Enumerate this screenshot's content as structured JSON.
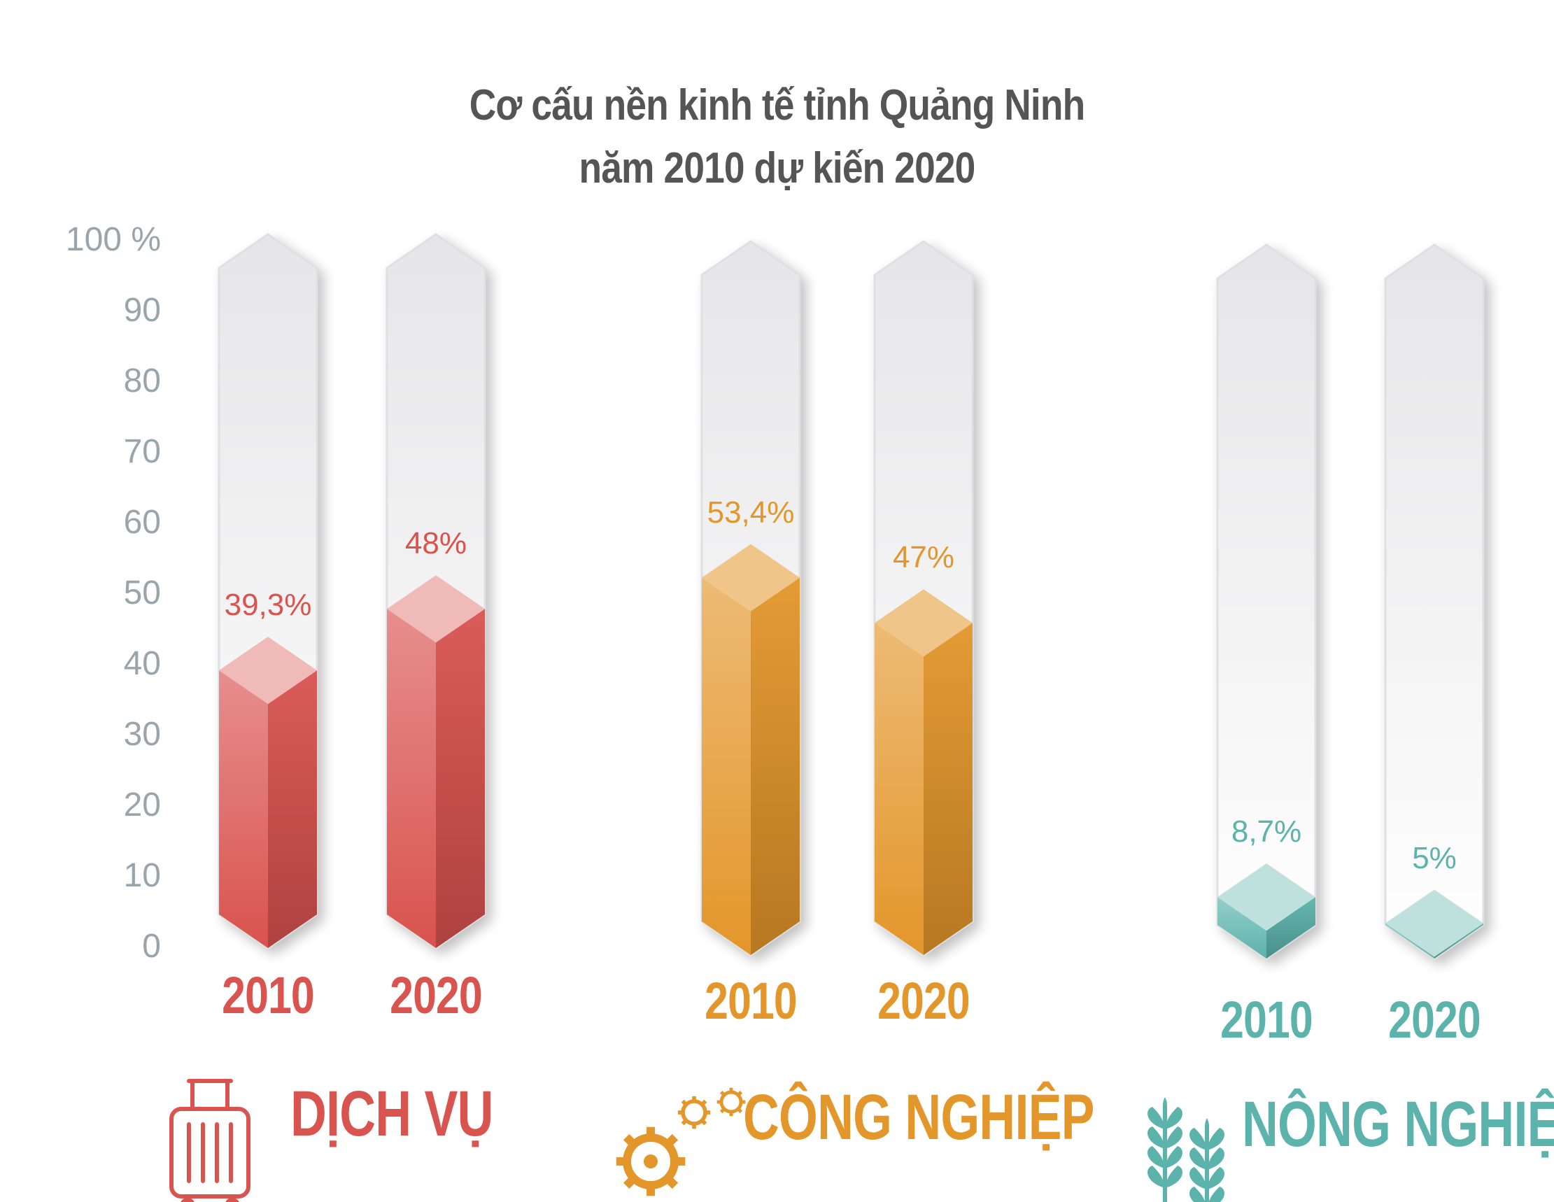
{
  "chart_data": {
    "type": "bar",
    "title": [
      "Cơ cấu nền kinh tế tỉnh Quảng Ninh",
      "năm 2010 dự kiến 2020"
    ],
    "y_ticks": [
      "100 %",
      "90",
      "80",
      "70",
      "60",
      "50",
      "40",
      "30",
      "20",
      "10",
      "0"
    ],
    "ylim": [
      0,
      100
    ],
    "groups": [
      {
        "name": "DỊCH VỤ",
        "icon": "suitcase-icon",
        "color": "#d9534f",
        "bars": [
          {
            "year": "2010",
            "value": 39.3,
            "label": "39,3%"
          },
          {
            "year": "2020",
            "value": 48,
            "label": "48%"
          }
        ]
      },
      {
        "name": "CÔNG NGHIỆP",
        "icon": "gears-icon",
        "color": "#e3962a",
        "bars": [
          {
            "year": "2010",
            "value": 53.4,
            "label": "53,4%"
          },
          {
            "year": "2020",
            "value": 47,
            "label": "47%"
          }
        ]
      },
      {
        "name": "NÔNG NGHIỆP",
        "icon": "wheat-icon",
        "color": "#5cb3ac",
        "bars": [
          {
            "year": "2010",
            "value": 8.7,
            "label": "8,7%"
          },
          {
            "year": "2020",
            "value": 5,
            "label": "5%"
          }
        ]
      }
    ]
  }
}
